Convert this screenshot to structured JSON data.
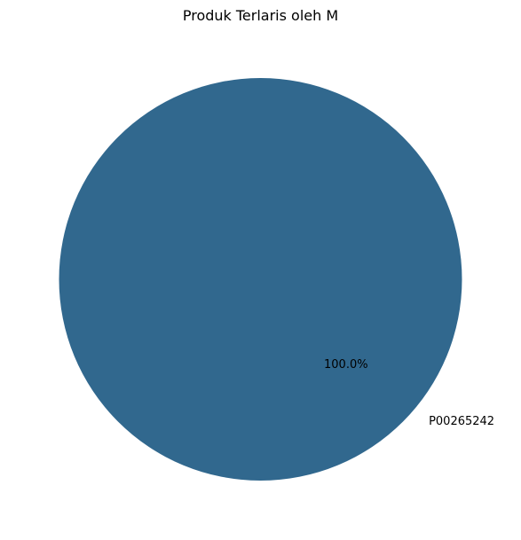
{
  "chart_data": {
    "type": "pie",
    "title": "Produk Terlaris oleh M",
    "slices": [
      {
        "label": "P00265242",
        "value": 100.0,
        "percent_label": "100.0%",
        "color": "#31688e"
      }
    ]
  }
}
